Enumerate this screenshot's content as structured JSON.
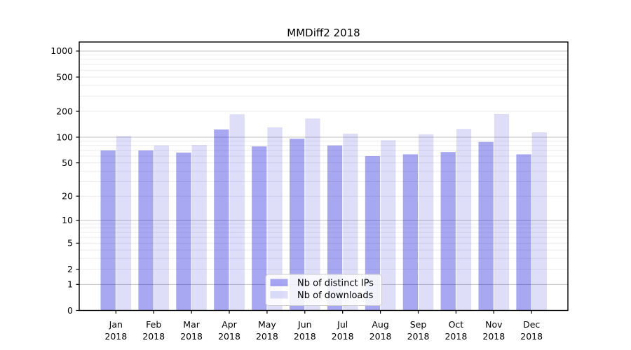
{
  "figure": {
    "title": "MMDiff2 2018"
  },
  "chart_data": {
    "type": "bar",
    "title": "MMDiff2 2018",
    "x_year": "2018",
    "categories": [
      "Jan",
      "Feb",
      "Mar",
      "Apr",
      "May",
      "Jun",
      "Jul",
      "Aug",
      "Sep",
      "Oct",
      "Nov",
      "Dec"
    ],
    "series": [
      {
        "name": "Nb of distinct IPs",
        "color": "rgba(0,0,216,0.34)",
        "color_flat": "#a8a8f0",
        "values": [
          70,
          70,
          66,
          123,
          78,
          96,
          80,
          60,
          63,
          67,
          88,
          63
        ]
      },
      {
        "name": "Nb of downloads",
        "color": "rgba(22,22,210,0.14)",
        "color_flat": "#dedcf8",
        "values": [
          103,
          80,
          81,
          185,
          130,
          165,
          110,
          92,
          108,
          125,
          186,
          114
        ]
      }
    ],
    "yscale": "log1p",
    "ylabel": "",
    "xlabel": "",
    "y_ticks": [
      1000,
      500,
      200,
      100,
      50,
      20,
      10,
      5,
      2,
      1,
      0
    ],
    "y_major_gridlines": [
      1,
      10,
      100,
      1000
    ],
    "ylim": [
      0,
      1270
    ],
    "grid": true,
    "legend": {
      "position": "lower center"
    }
  },
  "colors": {
    "grid_major": "#c2c2c2",
    "grid_minor": "#ebebeb",
    "axis": "#000000",
    "tick_label": "#000000",
    "legend_border": "#cccccc",
    "legend_bg": "rgba(255,255,255,0.85)"
  }
}
